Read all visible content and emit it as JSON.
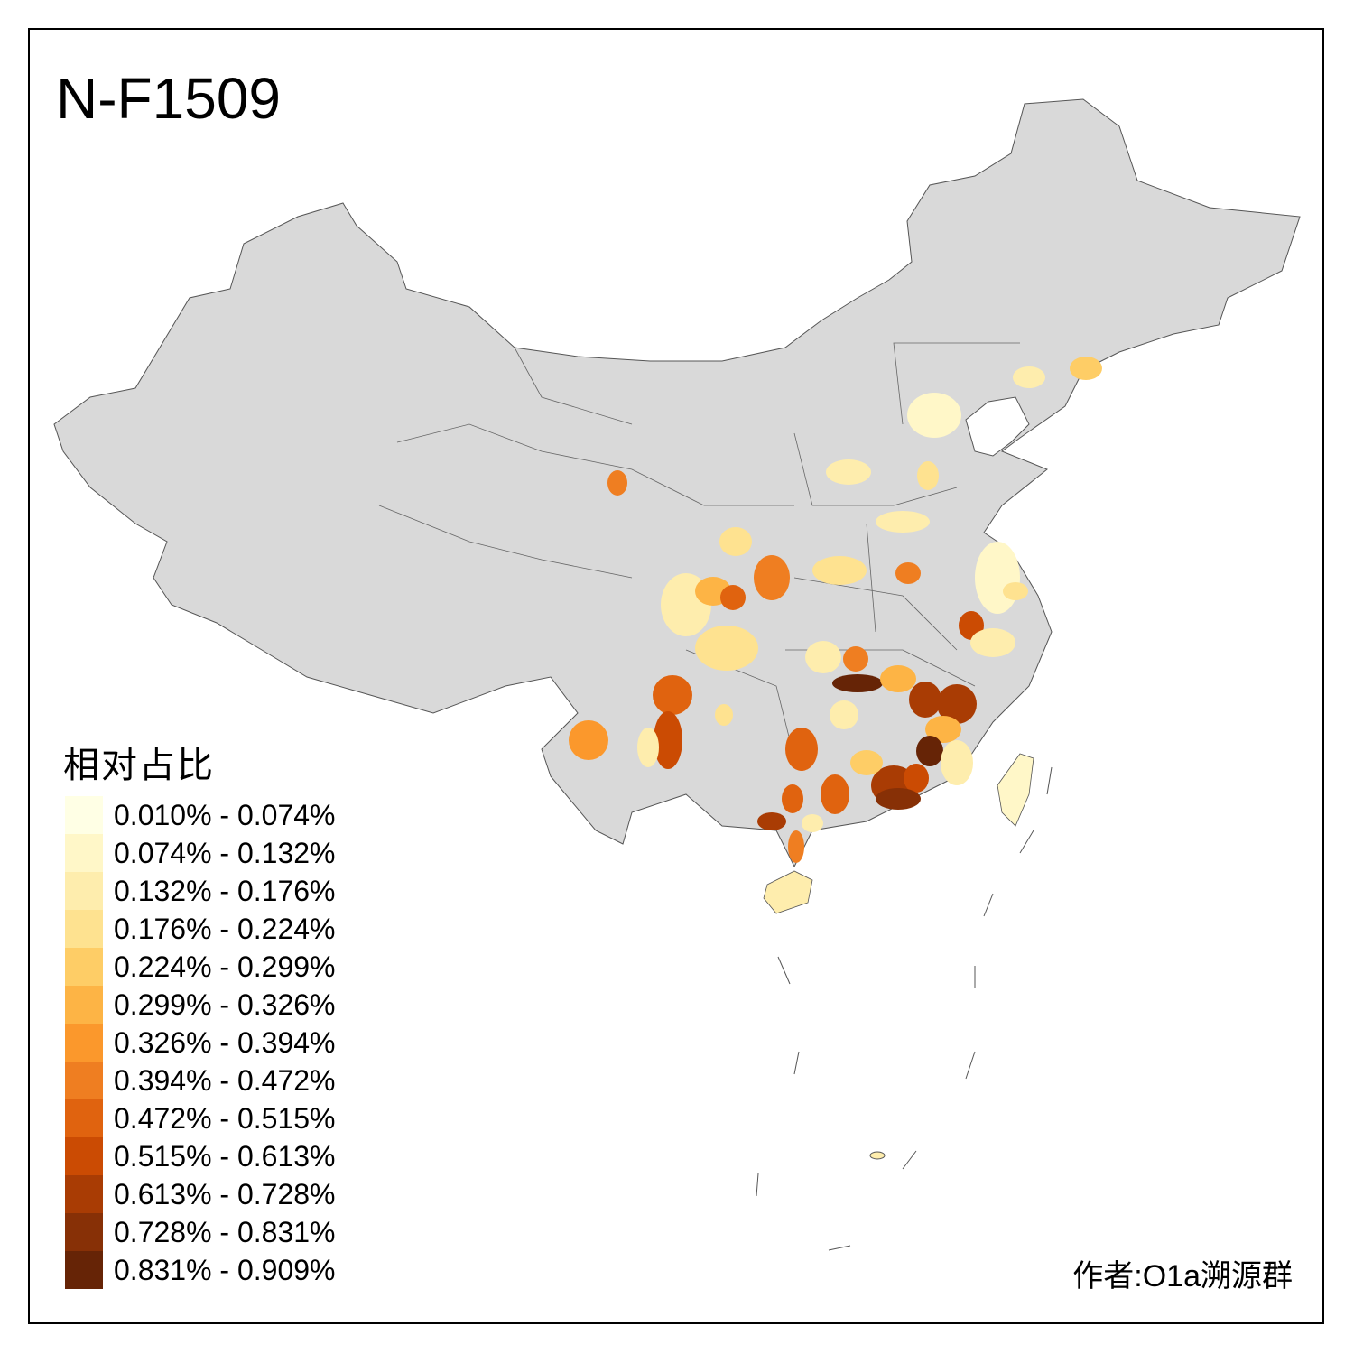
{
  "title": "N-F1509",
  "legend": {
    "title": "相对占比",
    "items": [
      {
        "label": "0.010% - 0.074%",
        "color": "#FFFFE5"
      },
      {
        "label": "0.074% - 0.132%",
        "color": "#FFF7C8"
      },
      {
        "label": "0.132% - 0.176%",
        "color": "#FEEDAD"
      },
      {
        "label": "0.176% - 0.224%",
        "color": "#FEE290"
      },
      {
        "label": "0.224% - 0.299%",
        "color": "#FECD66"
      },
      {
        "label": "0.299% - 0.326%",
        "color": "#FDB445"
      },
      {
        "label": "0.326% - 0.394%",
        "color": "#FB982C"
      },
      {
        "label": "0.394% - 0.472%",
        "color": "#EF7E21"
      },
      {
        "label": "0.472% - 0.515%",
        "color": "#E0630F"
      },
      {
        "label": "0.515% - 0.613%",
        "color": "#CB4B03"
      },
      {
        "label": "0.613% - 0.728%",
        "color": "#A93C04"
      },
      {
        "label": "0.728% - 0.831%",
        "color": "#873006"
      },
      {
        "label": "0.831% - 0.909%",
        "color": "#662406"
      }
    ]
  },
  "colors": {
    "no_data": "#D9D9D9",
    "border": "#555555"
  },
  "credit": "作者:O1a溯源群"
}
